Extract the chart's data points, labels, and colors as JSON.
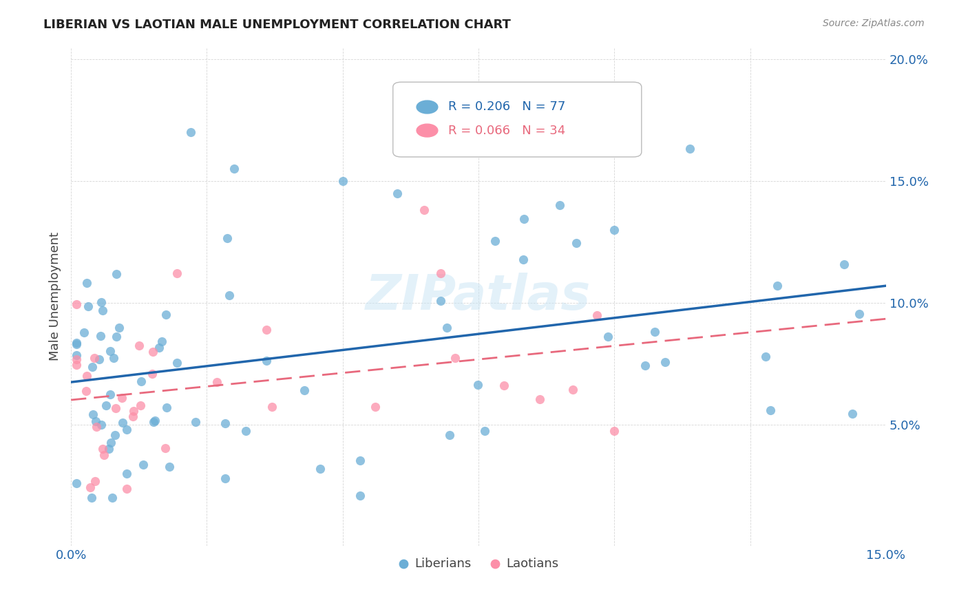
{
  "title": "LIBERIAN VS LAOTIAN MALE UNEMPLOYMENT CORRELATION CHART",
  "source": "Source: ZipAtlas.com",
  "ylabel": "Male Unemployment",
  "xlim": [
    0.0,
    0.15
  ],
  "ylim": [
    0.0,
    0.205
  ],
  "liberian_R": 0.206,
  "liberian_N": 77,
  "laotian_R": 0.066,
  "laotian_N": 34,
  "liberian_color": "#6baed6",
  "laotian_color": "#fc8fa8",
  "liberian_line_color": "#2166ac",
  "laotian_line_color": "#e8697d",
  "watermark": "ZIPatlas"
}
